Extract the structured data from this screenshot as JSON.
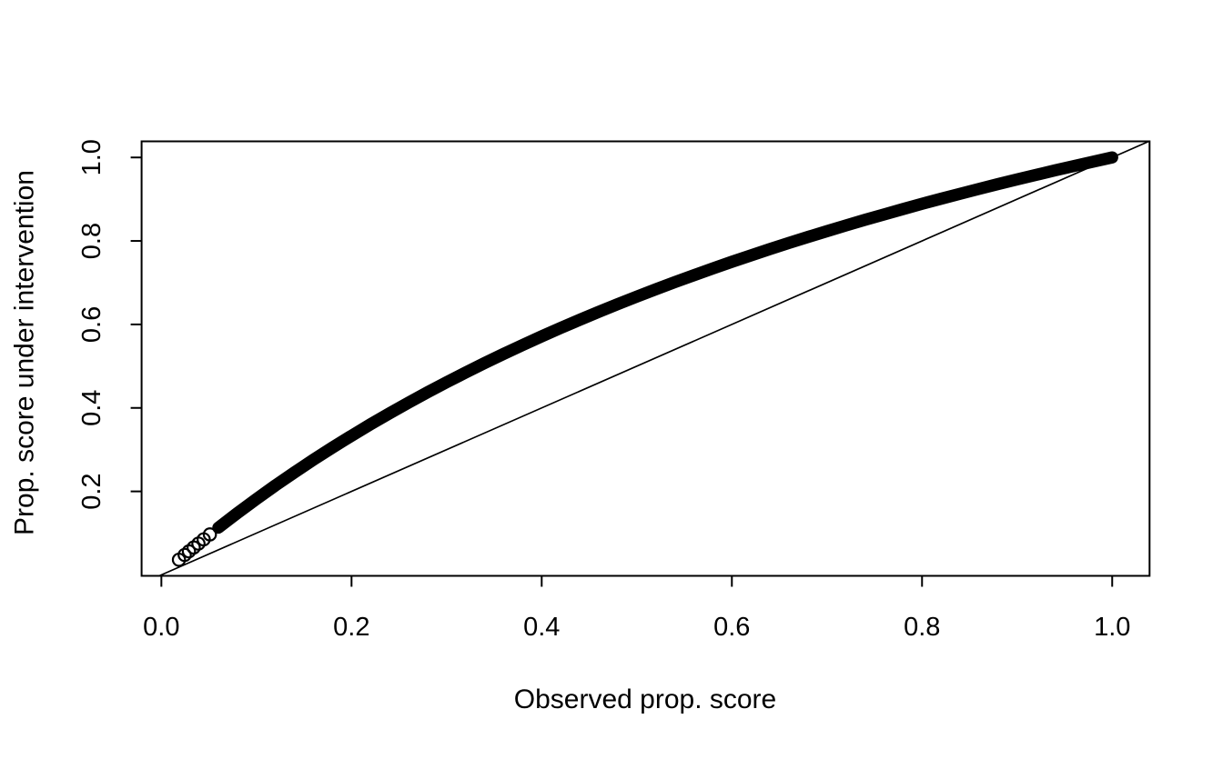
{
  "figure": {
    "background_color": "#ffffff",
    "foreground_color": "#000000"
  },
  "chart_data": {
    "type": "scatter",
    "title": "",
    "xlabel": "Observed prop. score",
    "ylabel": "Prop. score under intervention",
    "x_ticks": [
      0.0,
      0.2,
      0.4,
      0.6,
      0.8,
      1.0
    ],
    "x_tick_labels": [
      "0.0",
      "0.2",
      "0.4",
      "0.6",
      "0.8",
      "1.0"
    ],
    "y_ticks": [
      0.2,
      0.4,
      0.6,
      0.8,
      1.0
    ],
    "y_tick_labels": [
      "0.2",
      "0.4",
      "0.6",
      "0.8",
      "1.0"
    ],
    "xlim": [
      -0.0208,
      1.0393
    ],
    "ylim": [
      -0.0023,
      1.0386
    ],
    "grid": false,
    "legend": "none",
    "marker": "open-circle",
    "point_color": "#000000",
    "description": "Thousands of overlapping open-circle points forming a solid black band along the curve y = 2x/(1+x), lying above the identity line; a few isolated circles are visible at the low end near (0.02, 0.04); points and line meet at (1, 1).",
    "relation": "y = 2x / (1 + x)",
    "x_range_of_points": [
      0.0185,
      1.0
    ],
    "tail_points": [
      [
        0.0185,
        0.0363
      ],
      [
        0.0245,
        0.0478
      ],
      [
        0.029,
        0.0564
      ]
    ],
    "ring_zone_x": [
      0.034,
      0.039,
      0.0445,
      0.051
    ],
    "band_x_start": 0.048,
    "reference_line": {
      "type": "identity",
      "intercept": 0,
      "slope": 1
    },
    "curve_samples": [
      [
        0.02,
        0.0392
      ],
      [
        0.04,
        0.0769
      ],
      [
        0.06,
        0.1132
      ],
      [
        0.08,
        0.1481
      ],
      [
        0.1,
        0.1818
      ],
      [
        0.12,
        0.2143
      ],
      [
        0.14,
        0.2456
      ],
      [
        0.16,
        0.2759
      ],
      [
        0.18,
        0.3051
      ],
      [
        0.2,
        0.3333
      ],
      [
        0.22,
        0.3607
      ],
      [
        0.24,
        0.3871
      ],
      [
        0.26,
        0.4127
      ],
      [
        0.28,
        0.4375
      ],
      [
        0.3,
        0.4615
      ],
      [
        0.32,
        0.4848
      ],
      [
        0.34,
        0.5075
      ],
      [
        0.36,
        0.5294
      ],
      [
        0.38,
        0.5507
      ],
      [
        0.4,
        0.5714
      ],
      [
        0.42,
        0.5915
      ],
      [
        0.44,
        0.6111
      ],
      [
        0.46,
        0.6301
      ],
      [
        0.48,
        0.6486
      ],
      [
        0.5,
        0.6667
      ],
      [
        0.52,
        0.6842
      ],
      [
        0.54,
        0.7013
      ],
      [
        0.56,
        0.7179
      ],
      [
        0.58,
        0.7342
      ],
      [
        0.6,
        0.75
      ],
      [
        0.62,
        0.7654
      ],
      [
        0.64,
        0.7805
      ],
      [
        0.66,
        0.7952
      ],
      [
        0.68,
        0.8095
      ],
      [
        0.7,
        0.8235
      ],
      [
        0.72,
        0.8372
      ],
      [
        0.74,
        0.8506
      ],
      [
        0.76,
        0.8636
      ],
      [
        0.78,
        0.8764
      ],
      [
        0.8,
        0.8889
      ],
      [
        0.82,
        0.9011
      ],
      [
        0.84,
        0.913
      ],
      [
        0.86,
        0.9247
      ],
      [
        0.88,
        0.9362
      ],
      [
        0.9,
        0.9474
      ],
      [
        0.92,
        0.9583
      ],
      [
        0.94,
        0.9691
      ],
      [
        0.96,
        0.9796
      ],
      [
        0.98,
        0.9899
      ],
      [
        1.0,
        1.0
      ]
    ]
  }
}
